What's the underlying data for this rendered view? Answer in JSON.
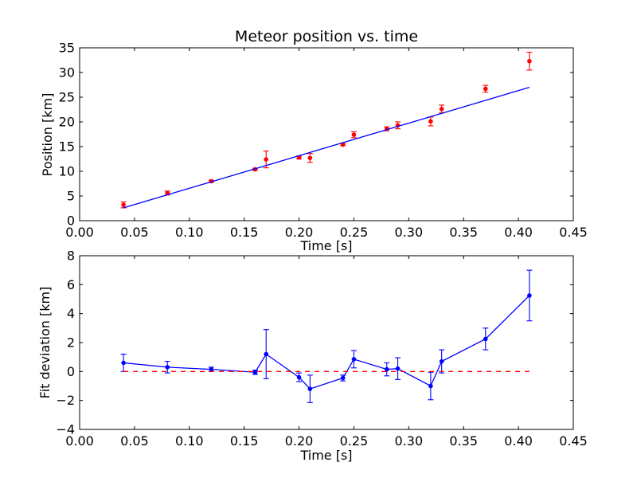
{
  "chart_data": [
    {
      "type": "scatter",
      "title": "Meteor position vs. time",
      "xlabel": "Time [s]",
      "ylabel": "Position [km]",
      "xlim": [
        0.0,
        0.45
      ],
      "ylim": [
        0,
        35
      ],
      "xticks": [
        "0.00",
        "0.05",
        "0.10",
        "0.15",
        "0.20",
        "0.25",
        "0.30",
        "0.35",
        "0.40",
        "0.45"
      ],
      "yticks": [
        "0",
        "5",
        "10",
        "15",
        "20",
        "25",
        "30",
        "35"
      ],
      "grid": false,
      "series": [
        {
          "kind": "errorbar",
          "color": "#ff0000",
          "x": [
            0.04,
            0.08,
            0.12,
            0.16,
            0.17,
            0.2,
            0.21,
            0.24,
            0.25,
            0.28,
            0.29,
            0.32,
            0.33,
            0.37,
            0.41
          ],
          "y": [
            3.2,
            5.6,
            8.0,
            10.4,
            12.4,
            12.8,
            12.7,
            15.4,
            17.4,
            18.6,
            19.3,
            20.1,
            22.6,
            26.7,
            32.3
          ],
          "yerr": [
            0.6,
            0.4,
            0.2,
            0.2,
            1.7,
            0.3,
            0.9,
            0.2,
            0.6,
            0.4,
            0.7,
            0.9,
            0.8,
            0.7,
            1.8
          ]
        },
        {
          "kind": "line",
          "color": "#0000ff",
          "x": [
            0.04,
            0.41
          ],
          "y": [
            2.6,
            27.0
          ]
        }
      ]
    },
    {
      "type": "line",
      "title": "",
      "xlabel": "Time [s]",
      "ylabel": "Fit deviation [km]",
      "xlim": [
        0.0,
        0.45
      ],
      "ylim": [
        -4,
        8
      ],
      "xticks": [
        "0.00",
        "0.05",
        "0.10",
        "0.15",
        "0.20",
        "0.25",
        "0.30",
        "0.35",
        "0.40",
        "0.45"
      ],
      "yticks": [
        "−4",
        "−2",
        "0",
        "2",
        "4",
        "6",
        "8"
      ],
      "grid": false,
      "series": [
        {
          "kind": "errorbar-line",
          "color": "#0000ff",
          "x": [
            0.04,
            0.08,
            0.12,
            0.16,
            0.17,
            0.2,
            0.21,
            0.24,
            0.25,
            0.28,
            0.29,
            0.32,
            0.33,
            0.37,
            0.41
          ],
          "y": [
            0.6,
            0.3,
            0.15,
            -0.05,
            1.2,
            -0.4,
            -1.2,
            -0.45,
            0.85,
            0.15,
            0.2,
            -1.0,
            0.7,
            2.25,
            5.25
          ],
          "yerr": [
            0.6,
            0.4,
            0.15,
            0.15,
            1.7,
            0.3,
            0.95,
            0.2,
            0.6,
            0.45,
            0.75,
            0.95,
            0.8,
            0.75,
            1.75
          ]
        },
        {
          "kind": "dashed-line",
          "color": "#ff0000",
          "x": [
            0.04,
            0.41
          ],
          "y": [
            0.0,
            0.0
          ]
        }
      ]
    }
  ]
}
